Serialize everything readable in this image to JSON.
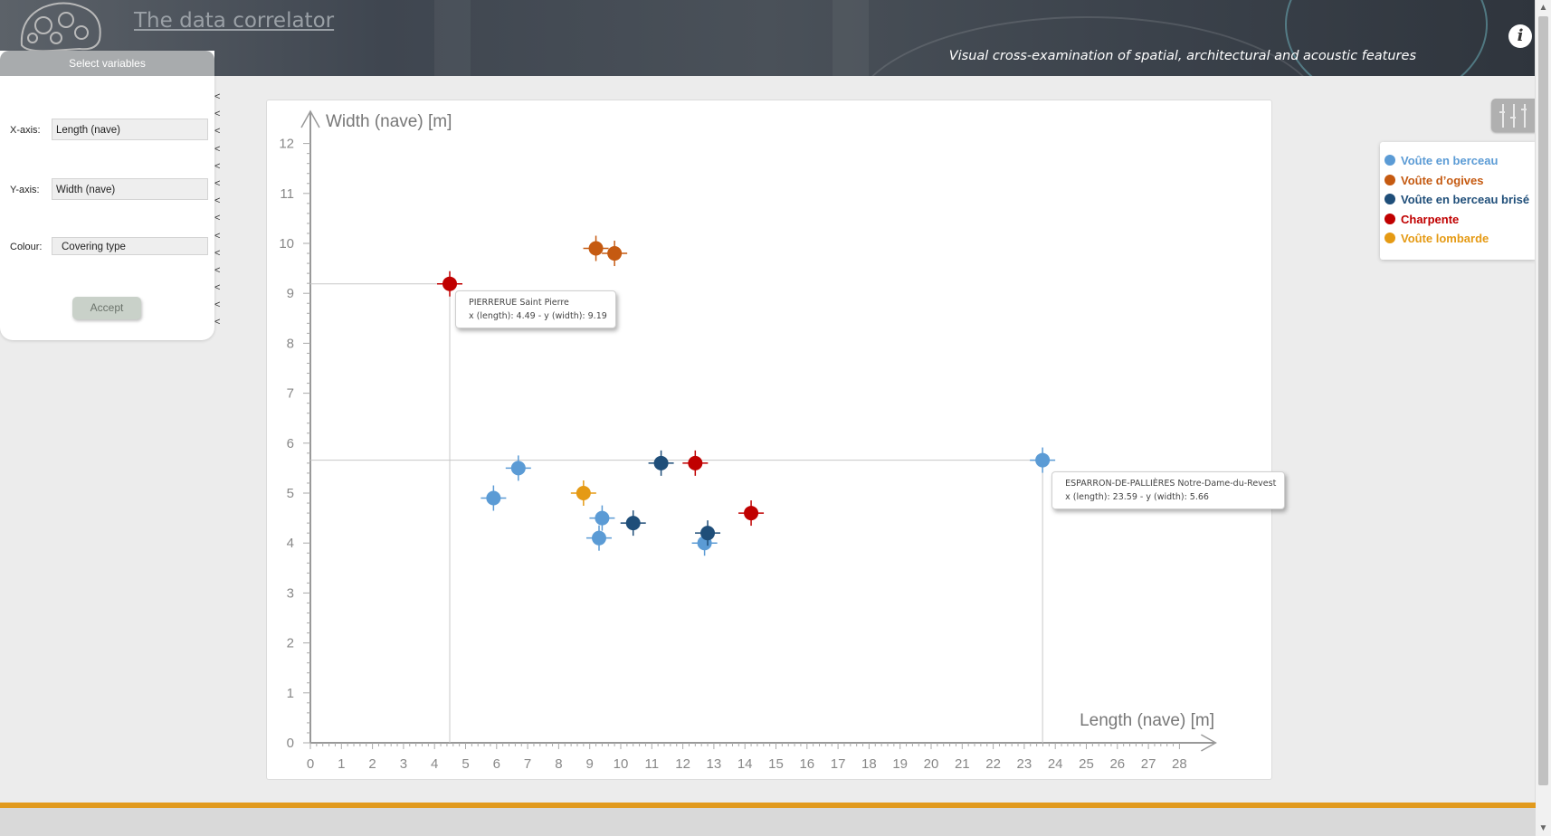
{
  "header": {
    "title": "The data correlator",
    "subtitle": "Visual cross-examination of spatial, architectural and acoustic features",
    "info_icon": "info-icon"
  },
  "panel": {
    "title": "Select variables",
    "fields": [
      {
        "label": "X-axis:",
        "value": "Length (nave)"
      },
      {
        "label": "Y-axis:",
        "value": "Width (nave)"
      },
      {
        "label": "Colour:",
        "value": "Covering type"
      }
    ],
    "accept_label": "Accept",
    "collapse_glyph": "<"
  },
  "legend": [
    {
      "label": "Voûte en berceau",
      "color": "#5b9bd5"
    },
    {
      "label": "Voûte d’ogives",
      "color": "#c55a11"
    },
    {
      "label": "Voûte en berceau brisé",
      "color": "#1f4e79"
    },
    {
      "label": "Charpente",
      "color": "#c00000"
    },
    {
      "label": "Voûte lombarde",
      "color": "#e59a14"
    }
  ],
  "chart_data": {
    "type": "scatter",
    "xlabel": "Length (nave) [m]",
    "ylabel": "Width (nave) [m]",
    "xlim": [
      0,
      28
    ],
    "ylim": [
      0,
      12
    ],
    "xticks": [
      0,
      1,
      2,
      3,
      4,
      5,
      6,
      7,
      8,
      9,
      10,
      11,
      12,
      13,
      14,
      15,
      16,
      17,
      18,
      19,
      20,
      21,
      22,
      23,
      24,
      25,
      26,
      27,
      28
    ],
    "yticks": [
      0,
      1,
      2,
      3,
      4,
      5,
      6,
      7,
      8,
      9,
      10,
      11,
      12
    ],
    "points": [
      {
        "x": 5.9,
        "y": 4.9,
        "category": "Voûte en berceau"
      },
      {
        "x": 6.7,
        "y": 5.5,
        "category": "Voûte en berceau"
      },
      {
        "x": 9.4,
        "y": 4.5,
        "category": "Voûte en berceau"
      },
      {
        "x": 9.3,
        "y": 4.1,
        "category": "Voûte en berceau"
      },
      {
        "x": 12.7,
        "y": 4.0,
        "category": "Voûte en berceau"
      },
      {
        "x": 23.59,
        "y": 5.66,
        "category": "Voûte en berceau"
      },
      {
        "x": 9.2,
        "y": 9.9,
        "category": "Voûte d’ogives"
      },
      {
        "x": 9.8,
        "y": 9.8,
        "category": "Voûte d’ogives"
      },
      {
        "x": 11.3,
        "y": 5.6,
        "category": "Voûte en berceau brisé"
      },
      {
        "x": 10.4,
        "y": 4.4,
        "category": "Voûte en berceau brisé"
      },
      {
        "x": 12.8,
        "y": 4.2,
        "category": "Voûte en berceau brisé"
      },
      {
        "x": 4.49,
        "y": 9.19,
        "category": "Charpente"
      },
      {
        "x": 12.4,
        "y": 5.6,
        "category": "Charpente"
      },
      {
        "x": 14.2,
        "y": 4.6,
        "category": "Charpente"
      },
      {
        "x": 8.8,
        "y": 5.0,
        "category": "Voûte lombarde"
      }
    ],
    "tooltips": [
      {
        "name": "PIERRERUE Saint Pierre",
        "detail": "x (length): 4.49 - y (width): 9.19",
        "x": 4.49,
        "y": 9.19
      },
      {
        "name": "ESPARRON-DE-PALLIÈRES Notre-Dame-du-Revest",
        "detail": "x (length): 23.59 - y (width): 5.66",
        "x": 23.59,
        "y": 5.66
      }
    ]
  }
}
